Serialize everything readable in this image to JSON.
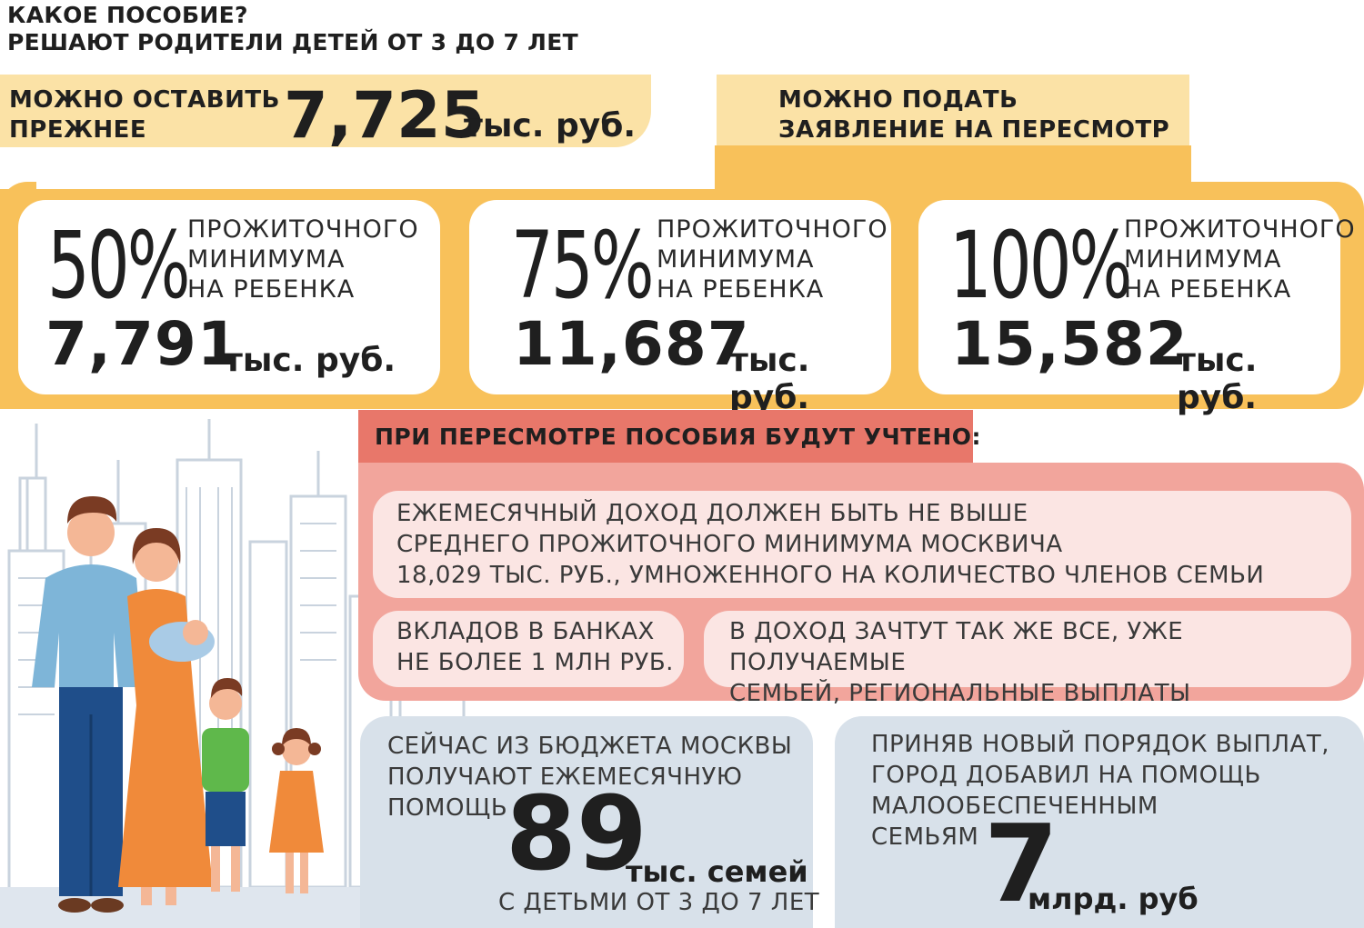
{
  "header": {
    "line1": "КАКОЕ ПОСОБИЕ?",
    "line2": "РЕШАЮТ РОДИТЕЛИ ДЕТЕЙ ОТ 3 ДО 7 ЛЕТ"
  },
  "keep": {
    "label_line1": "МОЖНО ОСТАВИТЬ",
    "label_line2": "ПРЕЖНЕЕ",
    "amount": "7,725",
    "unit": "тыс. руб."
  },
  "review": {
    "label_line1": "МОЖНО ПОДАТЬ",
    "label_line2": "ЗАЯВЛЕНИЕ НА ПЕРЕСМОТР"
  },
  "options": [
    {
      "percent": "50%",
      "l1": "ПРОЖИТОЧНОГО",
      "l2": "МИНИМУМА",
      "l3": "НА РЕБЕНКА",
      "amount": "7,791",
      "unit": "тыс. руб."
    },
    {
      "percent": "75%",
      "l1": "ПРОЖИТОЧНОГО",
      "l2": "МИНИМУМА",
      "l3": "НА РЕБЕНКА",
      "amount": "11,687",
      "unit": "тыс. руб."
    },
    {
      "percent": "100%",
      "l1": "ПРОЖИТОЧНОГО",
      "l2": "МИНИМУМА",
      "l3": "НА РЕБЕНКА",
      "amount": "15,582",
      "unit": "тыс. руб."
    }
  ],
  "conditions": {
    "heading": "ПРИ ПЕРЕСМОТРЕ ПОСОБИЯ БУДУТ УЧТЕНО:",
    "income": [
      "ЕЖЕМЕСЯЧНЫЙ ДОХОД ДОЛЖЕН БЫТЬ НЕ ВЫШЕ",
      "СРЕДНЕГО ПРОЖИТОЧНОГО МИНИМУМА МОСКВИЧА",
      "18,029 ТЫС. РУБ., УМНОЖЕННОГО НА КОЛИЧЕСТВО ЧЛЕНОВ СЕМЬИ"
    ],
    "deposits": [
      "ВКЛАДОВ В БАНКАХ",
      "НЕ БОЛЕЕ 1 МЛН РУБ."
    ],
    "payments": [
      "В ДОХОД ЗАЧТУТ ТАК ЖЕ ВСЕ, УЖЕ ПОЛУЧАЕМЫЕ",
      "СЕМЬЕЙ, РЕГИОНАЛЬНЫЕ  ВЫПЛАТЫ"
    ]
  },
  "stat_families": {
    "l1": "СЕЙЧАС ИЗ БЮДЖЕТА МОСКВЫ",
    "l2": "ПОЛУЧАЮТ ЕЖЕМЕСЯЧНУЮ",
    "l3": "ПОМОЩЬ",
    "number": "89",
    "unit": "тыс. семей",
    "footer": "С ДЕТЬМИ ОТ 3 ДО 7 ЛЕТ"
  },
  "stat_budget": {
    "l1": "ПРИНЯВ НОВЫЙ ПОРЯДОК ВЫПЛАТ,",
    "l2": "ГОРОД ДОБАВИЛ НА ПОМОЩЬ",
    "l3": "МАЛООБЕСПЕЧЕННЫМ",
    "l4": "СЕМЬЯМ",
    "number": "7",
    "unit": "млрд. руб"
  },
  "colors": {
    "light_yellow": "#fbe2a6",
    "orange": "#f8c15a",
    "red": "#e8776a",
    "pink": "#f2a59c",
    "pink_light": "#fbe5e3",
    "grey_blue": "#d8e1ea"
  },
  "illustration": "family-with-city-background"
}
